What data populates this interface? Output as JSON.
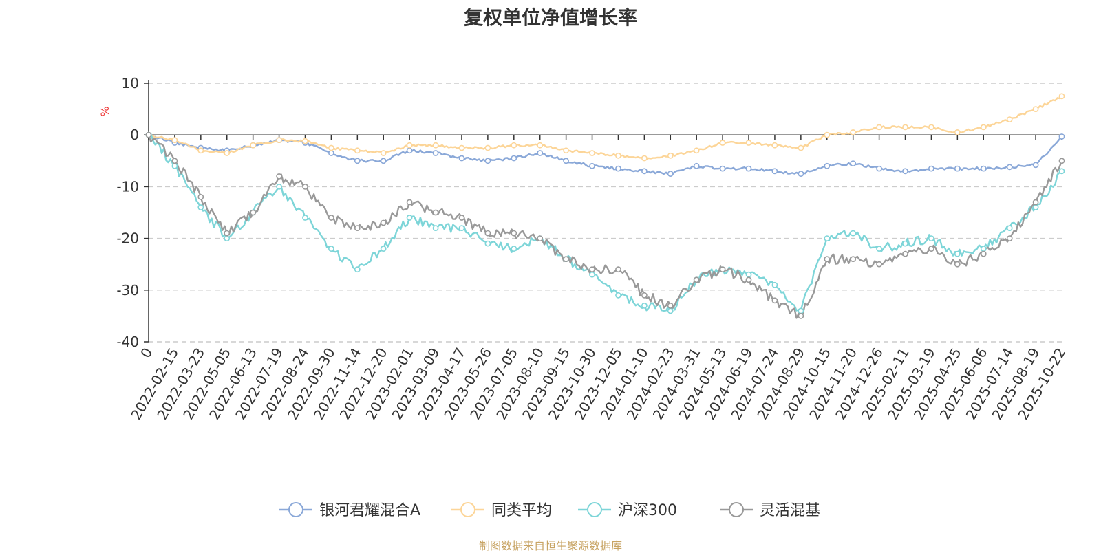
{
  "chart_data": {
    "type": "line",
    "title": "复权单位净值增长率",
    "ylabel": "%",
    "ylim": [
      -40,
      10
    ],
    "yticks": [
      10,
      0,
      -10,
      -20,
      -30,
      -40
    ],
    "grid": true,
    "legend_position": "bottom",
    "x_tick_labels": [
      "0",
      "2022-02-15",
      "2022-03-23",
      "2022-05-05",
      "2022-06-13",
      "2022-07-19",
      "2022-08-24",
      "2022-09-30",
      "2022-11-14",
      "2022-12-20",
      "2023-02-01",
      "2023-03-09",
      "2023-04-17",
      "2023-05-26",
      "2023-07-05",
      "2023-08-10",
      "2023-09-15",
      "2023-10-30",
      "2023-12-05",
      "2024-01-10",
      "2024-02-23",
      "2024-03-31",
      "2024-05-13",
      "2024-06-19",
      "2024-07-24",
      "2024-08-29",
      "2024-10-15",
      "2024-11-20",
      "2024-12-26",
      "2025-02-11",
      "2025-03-19",
      "2025-04-25",
      "2025-06-06",
      "2025-07-14",
      "2025-08-19",
      "2025-10-22"
    ],
    "x": [
      0,
      1,
      2,
      3,
      4,
      5,
      6,
      7,
      8,
      9,
      10,
      11,
      12,
      13,
      14,
      15,
      16,
      17,
      18,
      19,
      20,
      21,
      22,
      23,
      24,
      25,
      26,
      27,
      28,
      29,
      30,
      31,
      32,
      33,
      34,
      35
    ],
    "series": [
      {
        "name": "银河君耀混合A",
        "color": "#8aa8d8",
        "values": [
          0,
          -1.5,
          -2.5,
          -3,
          -2,
          -1,
          -1.5,
          -3.5,
          -5,
          -5,
          -3,
          -3.5,
          -4.5,
          -5,
          -4.5,
          -3.5,
          -5,
          -6,
          -6.5,
          -7,
          -7.5,
          -6,
          -6.5,
          -6.5,
          -7,
          -7.5,
          -6,
          -5.5,
          -6.5,
          -7,
          -6.5,
          -6.5,
          -6.5,
          -6.2,
          -5.8,
          -0.3
        ]
      },
      {
        "name": "同类平均",
        "color": "#fcd598",
        "values": [
          0,
          -1,
          -3,
          -3.5,
          -2,
          -1,
          -1.2,
          -2.5,
          -3,
          -3.5,
          -2,
          -2,
          -2.5,
          -2.5,
          -2,
          -2,
          -3,
          -3.5,
          -4,
          -4.5,
          -4,
          -3,
          -1.5,
          -1.5,
          -2,
          -2.5,
          0,
          0.5,
          1.5,
          1.5,
          1.5,
          0.5,
          1.5,
          3,
          5,
          7.5
        ]
      },
      {
        "name": "沪深300",
        "color": "#7dd5d8",
        "values": [
          0,
          -6,
          -14,
          -20,
          -15,
          -10,
          -16,
          -22,
          -26,
          -22,
          -16,
          -18,
          -18,
          -21,
          -22,
          -20,
          -24,
          -27,
          -31,
          -33,
          -34,
          -28,
          -26,
          -27,
          -29,
          -34,
          -20,
          -19,
          -22,
          -21,
          -20,
          -23,
          -22,
          -18,
          -14,
          -7
        ]
      },
      {
        "name": "灵活混基",
        "color": "#999999",
        "values": [
          0,
          -5,
          -12,
          -19,
          -15,
          -8,
          -10,
          -16,
          -18,
          -17,
          -13,
          -15,
          -16,
          -19,
          -19,
          -20,
          -24,
          -26,
          -26,
          -31,
          -33,
          -28,
          -26,
          -28,
          -32,
          -35,
          -24,
          -24,
          -25,
          -23,
          -22,
          -25,
          -23,
          -20,
          -13,
          -5
        ]
      }
    ],
    "source_note": "制图数据来自恒生聚源数据库"
  }
}
